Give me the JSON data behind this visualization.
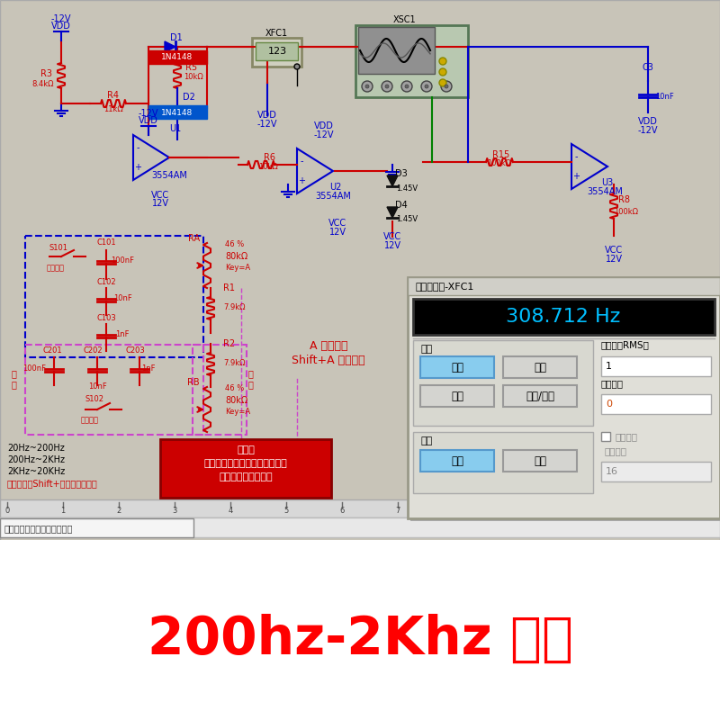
{
  "bg_color": "#d4d0c8",
  "title_text": "200hz-2Khz 状态",
  "title_color": "#ff0000",
  "title_fontsize": 42,
  "freq_display": "308.712 Hz",
  "freq_display_bg": "#000000",
  "freq_display_color": "#00bfff",
  "panel_title": "频率计数器-XFC1",
  "measure_label": "测量",
  "coupling_label": "耦合",
  "sensitivity_label": "灵敏度（RMS）",
  "trigger_label": "触发电平",
  "slow_label": "缓变信号",
  "compress_label": "压缩比：",
  "btn_pinlv": "频率",
  "btn_zhouqi": "周期",
  "btn_maichong": "脉冲",
  "btn_shengjiang": "上升/下降",
  "btn_jiaoliu": "交流",
  "btn_zhiliu": "直流",
  "val_sensitivity": "1",
  "val_trigger": "0",
  "val_compress": "16",
  "note_line1": "注意：",
  "note_line2": "调频率采用联动，需按键调节，",
  "note_line3": "勿用鼠标点击调节！",
  "note_bg": "#cc0000",
  "note_color": "#ffffff",
  "freq_line1": "20Hz~200Hz",
  "freq_line2": "200Hz~2KHz",
  "freq_line3": "2KHz~20KHz",
  "freq_line4": "按空格键与Shift+空格键切换频段",
  "adjust_line1": "A 调高频率",
  "adjust_line2": "Shift+A 降低频率",
  "adjust_color": "#cc0000",
  "tab_label": "频率可调三种波形信号发生器",
  "circuit_bg": "#c8c4b8",
  "opamp_color": "blue",
  "wire_red": "#cc0000",
  "wire_blue": "#0000cc"
}
